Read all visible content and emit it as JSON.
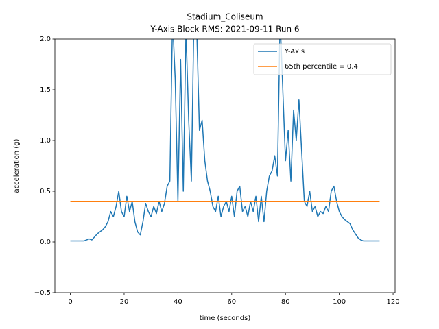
{
  "chart_data": {
    "type": "line",
    "title": "Stadium_Coliseum",
    "subtitle": "Y-Axis Block RMS: 2021-09-11 Run 6",
    "x_label": "time (seconds)",
    "y_label": "acceleration (g)",
    "xlim": [
      -5.75,
      120.75
    ],
    "ylim": [
      -0.5,
      2.0
    ],
    "xticks": [
      0,
      20,
      40,
      60,
      80,
      100,
      120
    ],
    "yticks": [
      {
        "value": -0.5,
        "label": "−0.5"
      },
      {
        "value": 0,
        "label": "0.0"
      },
      0.5,
      {
        "value": 1,
        "label": "1.0"
      },
      1.5,
      {
        "value": 2,
        "label": "2.0"
      }
    ],
    "grid": false,
    "legend": "upper right",
    "series": [
      {
        "name": "Y-Axis",
        "color": "#1f77b4",
        "x": [
          0,
          1,
          2,
          3,
          4,
          5,
          6,
          7,
          8,
          9,
          10,
          11,
          12,
          13,
          14,
          15,
          16,
          17,
          18,
          19,
          20,
          21,
          22,
          23,
          24,
          25,
          26,
          27,
          28,
          29,
          30,
          31,
          32,
          33,
          34,
          35,
          36,
          37,
          38,
          39,
          40,
          41,
          42,
          43,
          44,
          45,
          46,
          47,
          48,
          49,
          50,
          51,
          52,
          53,
          54,
          55,
          56,
          57,
          58,
          59,
          60,
          61,
          62,
          63,
          64,
          65,
          66,
          67,
          68,
          69,
          70,
          71,
          72,
          73,
          74,
          75,
          76,
          77,
          78,
          79,
          80,
          81,
          82,
          83,
          84,
          85,
          86,
          87,
          88,
          89,
          90,
          91,
          92,
          93,
          94,
          95,
          96,
          97,
          98,
          99,
          100,
          101,
          102,
          103,
          104,
          105,
          106,
          107,
          108,
          109,
          110,
          111,
          112,
          113,
          114,
          115
        ],
        "values": [
          0.01,
          0.01,
          0.01,
          0.01,
          0.01,
          0.01,
          0.02,
          0.03,
          0.02,
          0.05,
          0.08,
          0.1,
          0.12,
          0.15,
          0.2,
          0.3,
          0.25,
          0.35,
          0.5,
          0.3,
          0.25,
          0.45,
          0.3,
          0.4,
          0.2,
          0.1,
          0.07,
          0.2,
          0.38,
          0.3,
          0.25,
          0.35,
          0.28,
          0.4,
          0.3,
          0.38,
          0.55,
          0.6,
          2.2,
          1.6,
          0.4,
          1.8,
          0.5,
          2.1,
          1.2,
          0.6,
          2.3,
          2.1,
          1.1,
          1.2,
          0.8,
          0.6,
          0.5,
          0.35,
          0.3,
          0.45,
          0.25,
          0.35,
          0.4,
          0.3,
          0.45,
          0.25,
          0.5,
          0.55,
          0.3,
          0.35,
          0.25,
          0.4,
          0.3,
          0.45,
          0.2,
          0.45,
          0.2,
          0.5,
          0.65,
          0.7,
          0.85,
          0.65,
          2.2,
          1.5,
          0.8,
          1.1,
          0.6,
          1.3,
          1.0,
          1.4,
          0.9,
          0.4,
          0.35,
          0.5,
          0.3,
          0.35,
          0.25,
          0.3,
          0.28,
          0.35,
          0.3,
          0.5,
          0.55,
          0.4,
          0.3,
          0.25,
          0.22,
          0.2,
          0.18,
          0.12,
          0.08,
          0.04,
          0.02,
          0.01,
          0.01,
          0.01,
          0.01,
          0.01,
          0.01,
          0.01
        ]
      },
      {
        "name": "65th percentile = 0.4",
        "color": "#ff7f0e",
        "x": [
          0,
          115
        ],
        "values": [
          0.4,
          0.4
        ]
      }
    ]
  }
}
